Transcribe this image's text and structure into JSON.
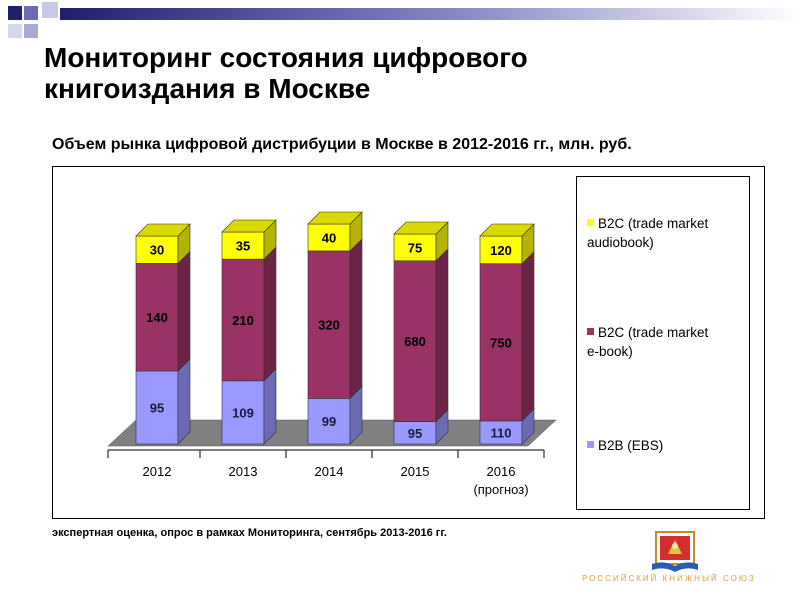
{
  "slide": {
    "title_line1": "Мониторинг состояния цифрового",
    "title_line2": "книгоиздания в Москве"
  },
  "chart_data": {
    "type": "bar",
    "stacked": true,
    "three_d": true,
    "title": "Объем рынка цифровой дистрибуции в Москве в 2012-2016 гг., млн. руб.",
    "categories": [
      "2012",
      "2013",
      "2014",
      "2015",
      "2016"
    ],
    "category_sublabels": [
      "",
      "",
      "",
      "",
      "(прогноз)"
    ],
    "series": [
      {
        "name": "B2B (EBS)",
        "values": [
          95,
          109,
          99,
          95,
          110
        ],
        "color": "#9999ff"
      },
      {
        "name": "B2C (trade market e-book)",
        "values": [
          140,
          210,
          320,
          680,
          750
        ],
        "color": "#993366"
      },
      {
        "name": "B2C (trade market audiobook)",
        "values": [
          30,
          35,
          40,
          75,
          120
        ],
        "color": "#ffff00"
      }
    ],
    "legend_position": "right",
    "grid": false
  },
  "legend": {
    "audiobook_line1": "B2C (trade market",
    "audiobook_line2": "audiobook)",
    "ebook_line1": "B2C (trade market",
    "ebook_line2": "e-book)",
    "ebs": "B2B (EBS)"
  },
  "footnote": "экспертная оценка, опрос в рамках Мониторинга, сентябрь 2013-2016 гг.",
  "logo": {
    "text": "Российский книжный союз"
  },
  "colors": {
    "accent_dark": "#1f1f6e",
    "accent_mid": "#6b6bb8",
    "floor": "#808080",
    "audiobook_swatch": "#ffff00",
    "ebook_swatch": "#993366",
    "ebs_swatch": "#9999ff"
  }
}
